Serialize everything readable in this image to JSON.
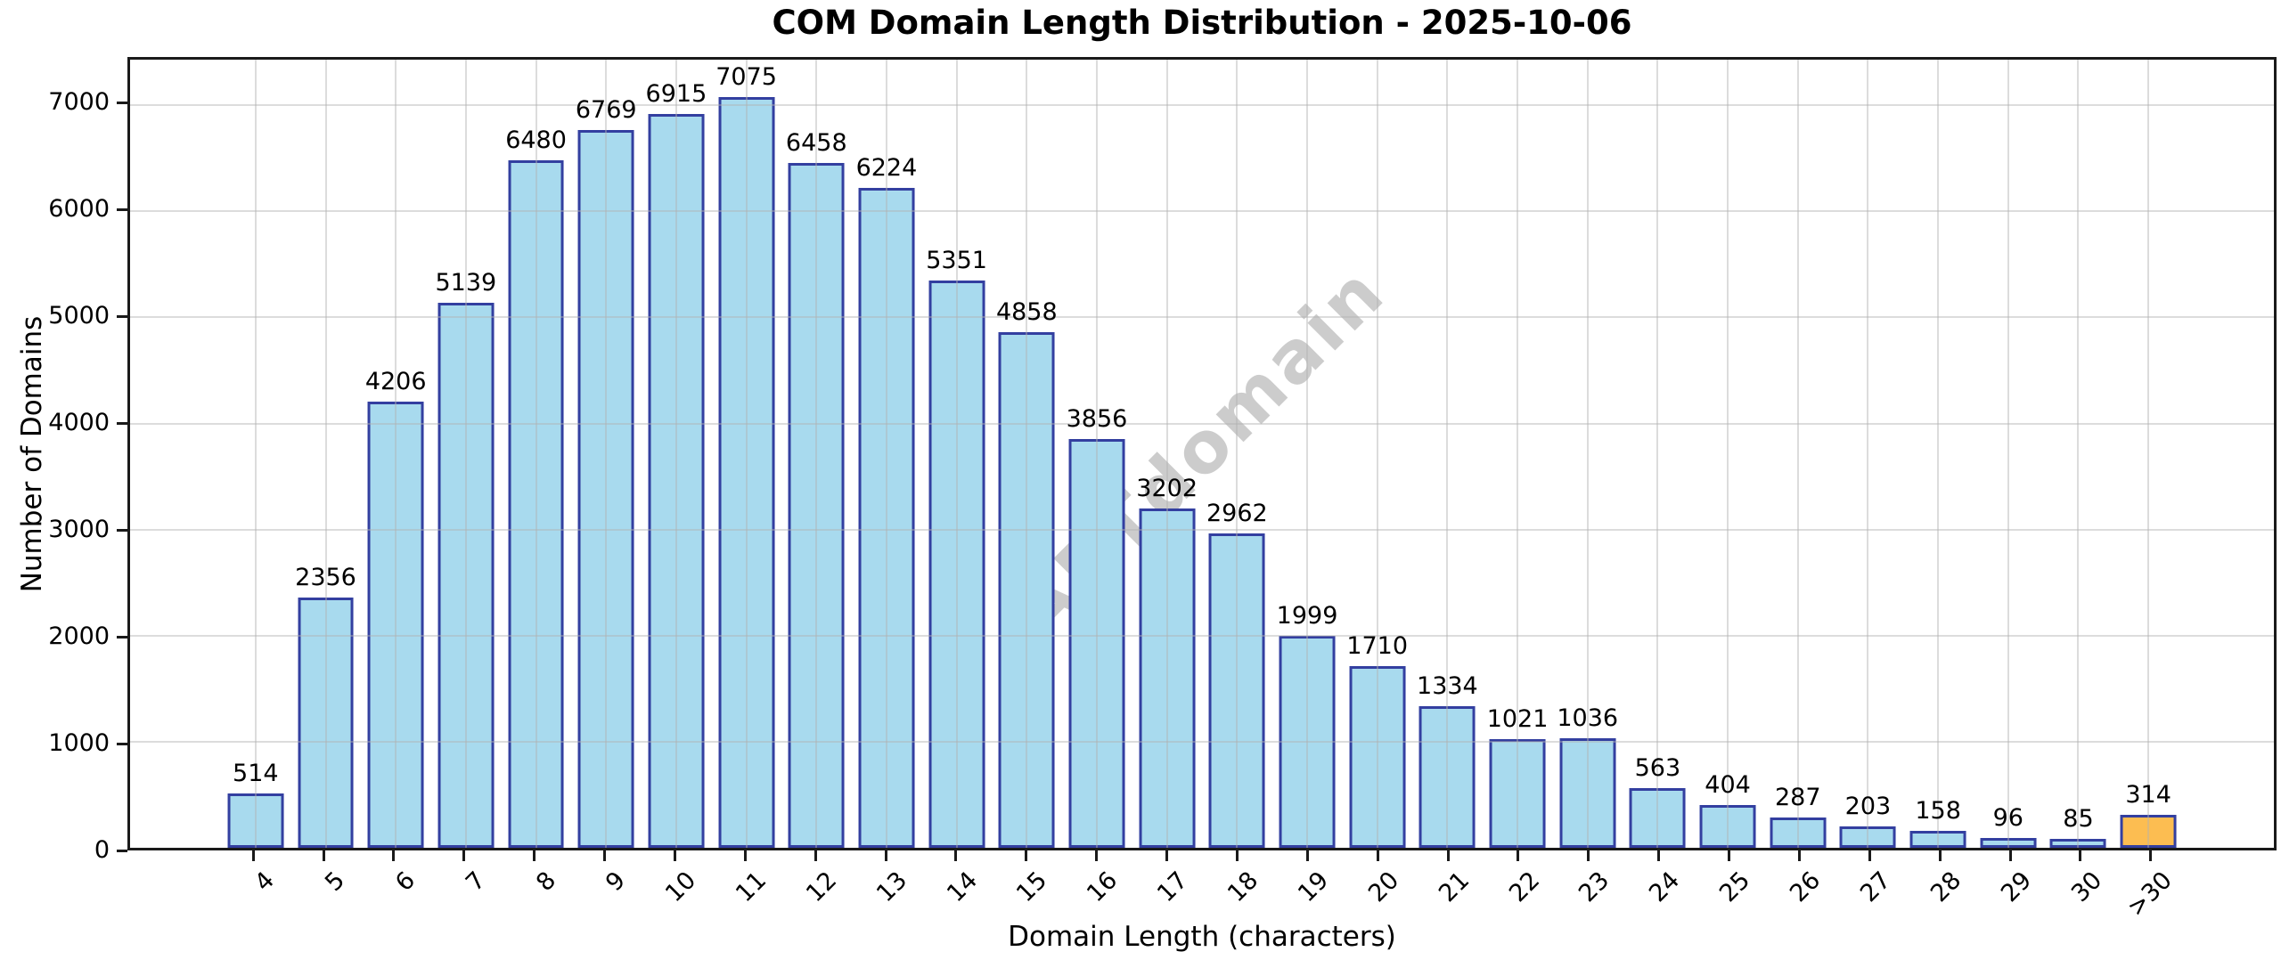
{
  "watermark": "ABTdomain",
  "chart_data": {
    "type": "bar",
    "title": "COM Domain Length Distribution - 2025-10-06",
    "xlabel": "Domain Length (characters)",
    "ylabel": "Number of Domains",
    "categories": [
      "4",
      "5",
      "6",
      "7",
      "8",
      "9",
      "10",
      "11",
      "12",
      "13",
      "14",
      "15",
      "16",
      "17",
      "18",
      "19",
      "20",
      "21",
      "22",
      "23",
      "24",
      "25",
      "26",
      "27",
      "28",
      "29",
      "30",
      ">30"
    ],
    "values": [
      514,
      2356,
      4206,
      5139,
      6480,
      6769,
      6915,
      7075,
      6458,
      6224,
      5351,
      4858,
      3856,
      3202,
      2962,
      1999,
      1710,
      1334,
      1021,
      1036,
      563,
      404,
      287,
      203,
      158,
      96,
      85,
      314
    ],
    "value_labels_shown": true,
    "yticks": [
      0,
      1000,
      2000,
      3000,
      4000,
      5000,
      6000,
      7000
    ],
    "ylim": [
      0,
      7429
    ],
    "grid": true,
    "legend_position": "none",
    "bar_color": "#a8daee",
    "bar_edge_color": "#333fa0",
    "highlight_index": 27,
    "highlight_color": "#fcbd51"
  }
}
